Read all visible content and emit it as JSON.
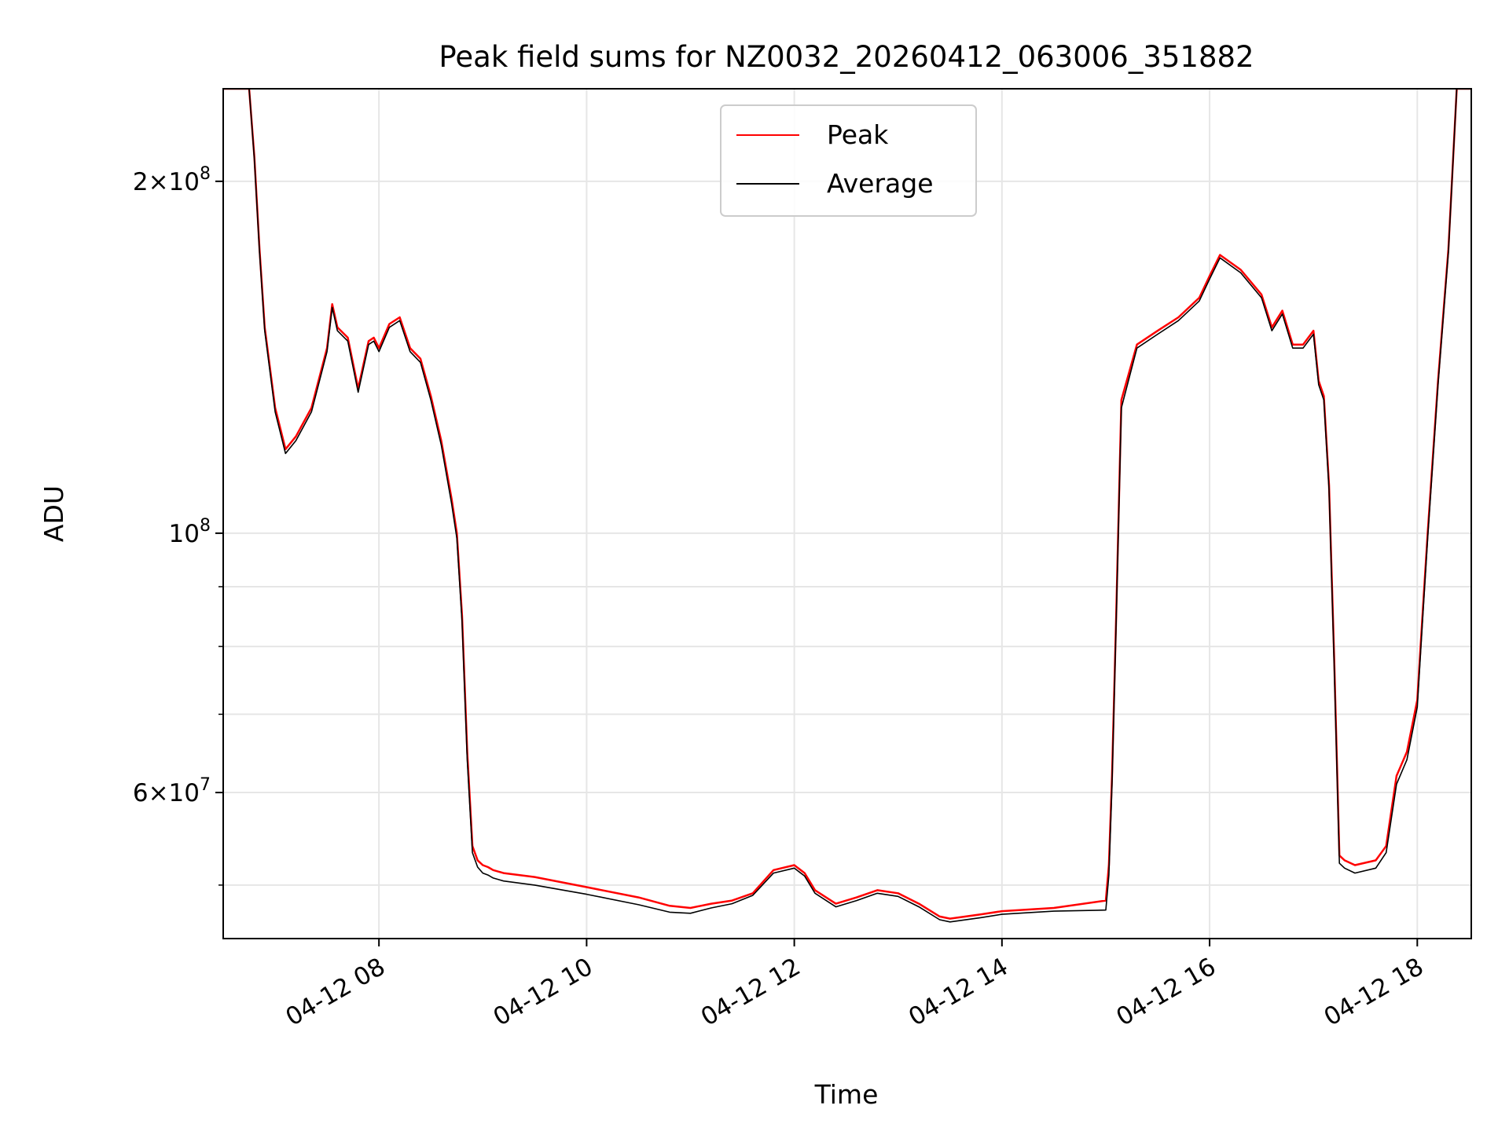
{
  "chart_data": {
    "type": "line",
    "title": "Peak field sums for NZ0032_20260412_063006_351882",
    "xlabel": "Time",
    "ylabel": "ADU",
    "y_scale": "log",
    "ylim": [
      45000000,
      240000000
    ],
    "xlim_hours": [
      6.5,
      18.52
    ],
    "grid": true,
    "legend_position": "upper center",
    "x_tick_labels": [
      "04-12 08",
      "04-12 10",
      "04-12 12",
      "04-12 14",
      "04-12 16",
      "04-12 18"
    ],
    "x_tick_hours": [
      8,
      10,
      12,
      14,
      16,
      18
    ],
    "y_major_ticks": [
      {
        "value": 60000000,
        "mantissa": "6",
        "exp": "7"
      },
      {
        "value": 100000000,
        "mantissa": "",
        "exp": "8"
      },
      {
        "value": 200000000,
        "mantissa": "2",
        "exp": "8"
      }
    ],
    "y_minor_ticks": [
      50000000,
      70000000,
      80000000,
      90000000
    ],
    "series": [
      {
        "name": "Peak",
        "color": "#ff0000",
        "x_hours": [
          6.5,
          6.75,
          6.8,
          6.85,
          6.9,
          7.0,
          7.1,
          7.2,
          7.35,
          7.5,
          7.55,
          7.6,
          7.7,
          7.8,
          7.9,
          7.95,
          8.0,
          8.1,
          8.2,
          8.3,
          8.4,
          8.5,
          8.6,
          8.7,
          8.75,
          8.8,
          8.85,
          8.9,
          8.95,
          9.0,
          9.05,
          9.1,
          9.2,
          9.5,
          10.0,
          10.5,
          10.8,
          11.0,
          11.2,
          11.4,
          11.6,
          11.8,
          12.0,
          12.1,
          12.2,
          12.4,
          12.6,
          12.8,
          13.0,
          13.2,
          13.4,
          13.5,
          13.8,
          14.0,
          14.5,
          15.0,
          15.03,
          15.06,
          15.1,
          15.15,
          15.3,
          15.5,
          15.7,
          15.9,
          16.0,
          16.1,
          16.3,
          16.5,
          16.6,
          16.7,
          16.8,
          16.9,
          17.0,
          17.05,
          17.1,
          17.15,
          17.2,
          17.25,
          17.3,
          17.4,
          17.6,
          17.7,
          17.8,
          17.9,
          18.0,
          18.05,
          18.1,
          18.2,
          18.3,
          18.38,
          18.52
        ],
        "y": [
          240000000,
          240000000,
          210000000,
          175000000,
          150000000,
          128000000,
          118000000,
          121000000,
          128000000,
          144000000,
          157000000,
          150000000,
          147000000,
          133000000,
          146000000,
          147000000,
          144000000,
          151000000,
          153000000,
          144000000,
          141000000,
          131000000,
          120000000,
          107000000,
          100000000,
          85000000,
          65000000,
          54000000,
          52500000,
          52000000,
          51800000,
          51500000,
          51200000,
          50800000,
          49800000,
          48800000,
          48000000,
          47800000,
          48200000,
          48500000,
          49200000,
          51500000,
          52000000,
          51200000,
          49500000,
          48200000,
          48800000,
          49500000,
          49200000,
          48200000,
          47000000,
          46800000,
          47200000,
          47500000,
          47800000,
          48500000,
          52000000,
          62000000,
          85000000,
          130000000,
          145000000,
          149000000,
          153000000,
          159000000,
          166000000,
          173000000,
          168000000,
          160000000,
          150000000,
          155000000,
          145000000,
          145000000,
          149000000,
          135000000,
          131000000,
          110000000,
          78000000,
          53000000,
          52500000,
          52000000,
          52500000,
          54000000,
          62000000,
          65000000,
          72000000,
          85000000,
          100000000,
          135000000,
          175000000,
          240000000,
          240000000
        ]
      },
      {
        "name": "Average",
        "color": "#000000",
        "x_hours": [
          6.5,
          6.75,
          6.8,
          6.85,
          6.9,
          7.0,
          7.1,
          7.2,
          7.35,
          7.5,
          7.55,
          7.6,
          7.7,
          7.8,
          7.9,
          7.95,
          8.0,
          8.1,
          8.2,
          8.3,
          8.4,
          8.5,
          8.6,
          8.7,
          8.75,
          8.8,
          8.85,
          8.9,
          8.95,
          9.0,
          9.05,
          9.1,
          9.2,
          9.5,
          10.0,
          10.5,
          10.8,
          11.0,
          11.2,
          11.4,
          11.6,
          11.8,
          12.0,
          12.1,
          12.2,
          12.4,
          12.6,
          12.8,
          13.0,
          13.2,
          13.4,
          13.5,
          13.8,
          14.0,
          14.5,
          15.0,
          15.03,
          15.06,
          15.1,
          15.15,
          15.3,
          15.5,
          15.7,
          15.9,
          16.0,
          16.1,
          16.3,
          16.5,
          16.6,
          16.7,
          16.8,
          16.9,
          17.0,
          17.05,
          17.1,
          17.15,
          17.2,
          17.25,
          17.3,
          17.4,
          17.6,
          17.7,
          17.8,
          17.9,
          18.0,
          18.05,
          18.1,
          18.2,
          18.3,
          18.38,
          18.52
        ],
        "y": [
          240000000,
          240000000,
          209000000,
          174000000,
          149000000,
          127000000,
          117000000,
          120000000,
          127000000,
          143000000,
          156000000,
          149000000,
          146000000,
          132000000,
          145000000,
          146000000,
          143000000,
          150000000,
          152000000,
          143000000,
          140000000,
          130000000,
          119000000,
          106000000,
          99000000,
          84000000,
          64000000,
          53300000,
          51800000,
          51200000,
          51000000,
          50700000,
          50400000,
          50000000,
          49100000,
          48100000,
          47400000,
          47300000,
          47800000,
          48200000,
          49000000,
          51200000,
          51700000,
          50900000,
          49200000,
          47900000,
          48500000,
          49200000,
          48900000,
          47900000,
          46700000,
          46500000,
          46900000,
          47200000,
          47500000,
          47600000,
          51000000,
          61000000,
          84000000,
          128000000,
          144000000,
          148000000,
          152000000,
          158000000,
          165000000,
          172000000,
          167000000,
          159000000,
          149000000,
          154000000,
          144000000,
          144000000,
          148000000,
          134000000,
          130000000,
          109000000,
          77000000,
          52200000,
          51700000,
          51200000,
          51700000,
          53300000,
          61000000,
          64000000,
          71000000,
          84000000,
          99000000,
          134000000,
          174000000,
          240000000,
          240000000
        ]
      }
    ]
  }
}
